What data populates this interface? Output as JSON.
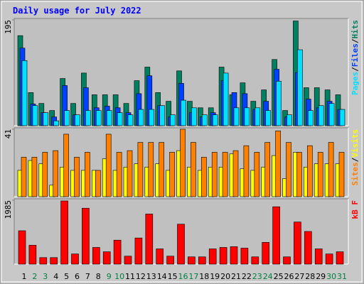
{
  "title": "Daily usage for July 2022",
  "legend_separator": "/",
  "chart_data": [
    {
      "type": "bar",
      "ylim": [
        0,
        195
      ],
      "yticks": [
        195
      ],
      "series": [
        {
          "name": "Hits",
          "color": "#008060",
          "values": [
            166,
            61,
            41,
            28,
            87,
            41,
            97,
            57,
            57,
            57,
            41,
            83,
            108,
            61,
            45,
            101,
            45,
            33,
            33,
            108,
            57,
            79,
            45,
            66,
            122,
            28,
            193,
            70,
            70,
            66,
            57
          ]
        },
        {
          "name": "Files",
          "color": "#0040ff",
          "values": [
            143,
            40,
            24,
            16,
            74,
            20,
            70,
            33,
            36,
            33,
            24,
            59,
            92,
            37,
            16,
            78,
            24,
            16,
            24,
            83,
            61,
            59,
            30,
            45,
            104,
            16,
            98,
            49,
            33,
            45,
            30
          ]
        },
        {
          "name": "Pages",
          "color": "#00e0ff",
          "values": [
            120,
            37,
            24,
            9,
            28,
            20,
            28,
            28,
            28,
            24,
            20,
            30,
            30,
            37,
            20,
            47,
            33,
            20,
            20,
            97,
            33,
            33,
            33,
            28,
            82,
            20,
            140,
            28,
            37,
            41,
            30
          ]
        }
      ]
    },
    {
      "type": "bar",
      "ylim": [
        0,
        41
      ],
      "yticks": [
        41
      ],
      "series": [
        {
          "name": "Visits",
          "color": "#ffff00",
          "values": [
            16,
            22,
            20,
            7,
            18,
            16,
            16,
            16,
            23,
            16,
            18,
            20,
            18,
            20,
            16,
            28,
            18,
            16,
            18,
            18,
            26,
            17,
            16,
            18,
            25,
            11,
            27,
            18,
            20,
            20,
            20
          ]
        },
        {
          "name": "Sites",
          "color": "#ff8000",
          "values": [
            24,
            24,
            27,
            28,
            38,
            24,
            27,
            16,
            38,
            27,
            28,
            33,
            33,
            33,
            27,
            41,
            33,
            24,
            27,
            27,
            28,
            31,
            27,
            33,
            40,
            33,
            27,
            31,
            27,
            33,
            27
          ]
        }
      ]
    },
    {
      "type": "bar",
      "ylim": [
        0,
        1985
      ],
      "yticks": [
        1985
      ],
      "categories": [
        "1",
        "2",
        "3",
        "4",
        "5",
        "6",
        "7",
        "8",
        "9",
        "10",
        "11",
        "12",
        "13",
        "14",
        "15",
        "16",
        "17",
        "18",
        "19",
        "20",
        "21",
        "22",
        "23",
        "24",
        "25",
        "26",
        "27",
        "28",
        "29",
        "30",
        "31"
      ],
      "category_colors": [
        "#000000",
        "#008040",
        "#008040",
        "#000000",
        "#000000",
        "#000000",
        "#000000",
        "#000000",
        "#008040",
        "#008040",
        "#000000",
        "#000000",
        "#000000",
        "#000000",
        "#000000",
        "#008040",
        "#008040",
        "#000000",
        "#000000",
        "#000000",
        "#000000",
        "#000000",
        "#008040",
        "#008040",
        "#000000",
        "#000000",
        "#000000",
        "#000000",
        "#000000",
        "#008040",
        "#008040"
      ],
      "series": [
        {
          "name": "kB F",
          "color": "#ff0000",
          "values": [
            1037,
            587,
            203,
            203,
            1963,
            316,
            1737,
            519,
            384,
            745,
            248,
            812,
            1557,
            474,
            248,
            1241,
            226,
            226,
            474,
            519,
            542,
            497,
            226,
            677,
            1782,
            226,
            1309,
            1015,
            474,
            316,
            384
          ]
        }
      ]
    }
  ]
}
